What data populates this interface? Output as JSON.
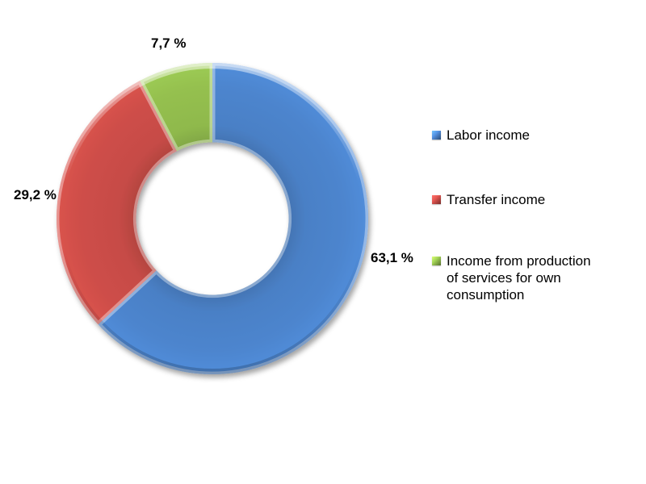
{
  "chart_data": {
    "type": "pie",
    "subtype": "doughnut",
    "title": "",
    "categories": [
      "Labor income",
      "Transfer income",
      "Income from production of services for own consumption"
    ],
    "values": [
      63.1,
      29.2,
      7.7
    ],
    "labels_display": [
      "63,1 %",
      "29,2 %",
      "7,7 %"
    ],
    "colors": [
      "#4A80C6",
      "#C64B46",
      "#8FB94C"
    ],
    "start_angle_deg": 0,
    "direction": "clockwise",
    "hole_ratio": 0.49,
    "legend_position": "right",
    "number_format": "decimal-comma-percent",
    "style": "3d-bevel-with-shadow",
    "background": "#FFFFFF",
    "label_color": "#000000"
  },
  "legend": {
    "items": [
      {
        "label": "Labor income",
        "color": "#4A80C6",
        "marker": "beveled-square"
      },
      {
        "label": "Transfer income",
        "color": "#C64B46",
        "marker": "beveled-square"
      },
      {
        "label": "Income from production of services for own consumption",
        "color": "#8FB94C",
        "marker": "beveled-square"
      }
    ]
  }
}
